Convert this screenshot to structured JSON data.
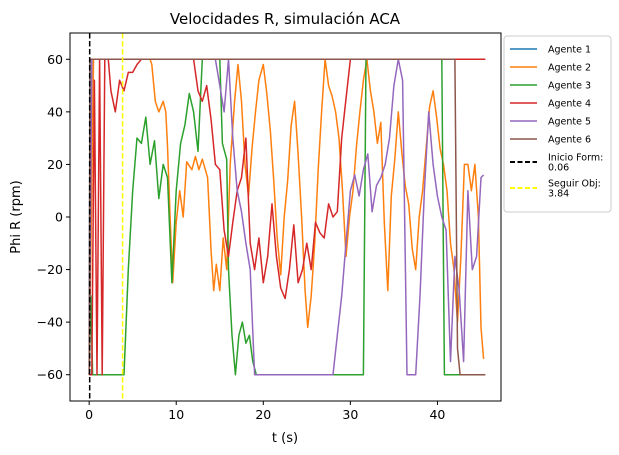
{
  "chart_data": {
    "type": "line",
    "title": "Velocidades R, simulación ACA",
    "xlabel": "t (s)",
    "ylabel": "Phi R (rpm)",
    "xlim": [
      -2.2,
      47.3
    ],
    "ylim": [
      -70,
      70
    ],
    "xticks": [
      0,
      10,
      20,
      30,
      40
    ],
    "yticks": [
      -60,
      -40,
      -20,
      0,
      20,
      40,
      60
    ],
    "grid": false,
    "legend_position": "outside-right",
    "series": [
      {
        "name": "Agente 1",
        "color": "#1f77b4",
        "points": [
          [
            0,
            -60
          ],
          [
            0.1,
            60
          ],
          [
            45.5,
            60
          ]
        ]
      },
      {
        "name": "Agente 2",
        "color": "#ff7f0e",
        "points": [
          [
            0,
            -60
          ],
          [
            0.5,
            60
          ],
          [
            7,
            60
          ],
          [
            7.2,
            58
          ],
          [
            7.6,
            44
          ],
          [
            8,
            40
          ],
          [
            8.5,
            44
          ],
          [
            8.8,
            40
          ],
          [
            9,
            27
          ],
          [
            9.3,
            0
          ],
          [
            9.6,
            -25
          ],
          [
            10,
            -2
          ],
          [
            10.4,
            10
          ],
          [
            10.8,
            0
          ],
          [
            11.2,
            21
          ],
          [
            11.8,
            18
          ],
          [
            12.2,
            23
          ],
          [
            12.6,
            18
          ],
          [
            13,
            22
          ],
          [
            13.6,
            15
          ],
          [
            14,
            -13
          ],
          [
            14.3,
            -28
          ],
          [
            14.6,
            -18
          ],
          [
            15,
            -28
          ],
          [
            15.4,
            -8
          ],
          [
            15.8,
            -20
          ],
          [
            16.2,
            20
          ],
          [
            16.7,
            44
          ],
          [
            17.1,
            58
          ],
          [
            17.5,
            44
          ],
          [
            17.9,
            20
          ],
          [
            18.3,
            8
          ],
          [
            18.7,
            26
          ],
          [
            19.1,
            40
          ],
          [
            19.5,
            52
          ],
          [
            20,
            58
          ],
          [
            20.4,
            47
          ],
          [
            20.8,
            33
          ],
          [
            21.2,
            14
          ],
          [
            21.6,
            -8
          ],
          [
            22,
            -22
          ],
          [
            22.4,
            0
          ],
          [
            22.8,
            14
          ],
          [
            23.2,
            35
          ],
          [
            23.6,
            44
          ],
          [
            24,
            24
          ],
          [
            24.4,
            0
          ],
          [
            24.8,
            -28
          ],
          [
            25.1,
            -42
          ],
          [
            25.5,
            -30
          ],
          [
            25.9,
            -10
          ],
          [
            26.3,
            18
          ],
          [
            26.7,
            40
          ],
          [
            27.1,
            60
          ],
          [
            27.5,
            50
          ],
          [
            27.9,
            46
          ],
          [
            28.3,
            40
          ],
          [
            28.7,
            30
          ],
          [
            29.1,
            10
          ],
          [
            29.5,
            -15
          ],
          [
            29.9,
            0
          ],
          [
            30.3,
            10
          ],
          [
            30.7,
            27
          ],
          [
            31.1,
            40
          ],
          [
            31.5,
            52
          ],
          [
            31.9,
            60
          ],
          [
            32.3,
            48
          ],
          [
            32.7,
            40
          ],
          [
            33.1,
            28
          ],
          [
            33.5,
            36
          ],
          [
            33.9,
            -2
          ],
          [
            34.3,
            -28
          ],
          [
            34.7,
            8
          ],
          [
            35.1,
            22
          ],
          [
            35.5,
            40
          ],
          [
            35.9,
            25
          ],
          [
            36.3,
            12
          ],
          [
            36.7,
            5
          ],
          [
            37.1,
            -12
          ],
          [
            37.5,
            -20
          ],
          [
            37.9,
            0
          ],
          [
            38.3,
            10
          ],
          [
            38.7,
            26
          ],
          [
            39.1,
            42
          ],
          [
            39.5,
            48
          ],
          [
            39.9,
            38
          ],
          [
            40.3,
            26
          ],
          [
            40.7,
            20
          ],
          [
            41.1,
            10
          ],
          [
            41.5,
            -10
          ],
          [
            41.9,
            -20
          ],
          [
            42.3,
            -40
          ],
          [
            42.7,
            -15
          ],
          [
            43.1,
            20
          ],
          [
            43.5,
            20
          ],
          [
            43.9,
            10
          ],
          [
            44.3,
            20
          ],
          [
            44.7,
            0
          ],
          [
            45,
            -42
          ],
          [
            45.3,
            -54
          ]
        ]
      },
      {
        "name": "Agente 3",
        "color": "#2ca02c",
        "points": [
          [
            0,
            -60
          ],
          [
            0.2,
            -30
          ],
          [
            0.4,
            -60
          ],
          [
            4,
            -60
          ],
          [
            4.5,
            -20
          ],
          [
            5,
            10
          ],
          [
            5.5,
            30
          ],
          [
            6,
            28
          ],
          [
            6.5,
            38
          ],
          [
            7,
            20
          ],
          [
            7.5,
            29
          ],
          [
            8,
            7
          ],
          [
            8.5,
            20
          ],
          [
            9,
            15
          ],
          [
            9.5,
            -25
          ],
          [
            10,
            10
          ],
          [
            10.5,
            28
          ],
          [
            11,
            35
          ],
          [
            11.5,
            47
          ],
          [
            12,
            40
          ],
          [
            12.5,
            25
          ],
          [
            13,
            60
          ],
          [
            15,
            60
          ],
          [
            15.3,
            28
          ],
          [
            15.8,
            22
          ],
          [
            16,
            -20
          ],
          [
            16.4,
            -45
          ],
          [
            16.8,
            -60
          ],
          [
            17.2,
            -45
          ],
          [
            17.6,
            -40
          ],
          [
            18,
            -48
          ],
          [
            18.4,
            -45
          ],
          [
            18.8,
            -55
          ],
          [
            19.2,
            -60
          ],
          [
            31.5,
            -60
          ],
          [
            31.8,
            60
          ],
          [
            40.5,
            60
          ],
          [
            40.8,
            -60
          ],
          [
            45.5,
            -60
          ]
        ]
      },
      {
        "name": "Agente 4",
        "color": "#d62728",
        "points": [
          [
            0,
            -60
          ],
          [
            0.3,
            -60
          ],
          [
            0.6,
            52
          ],
          [
            0.9,
            -60
          ],
          [
            1.2,
            60
          ],
          [
            1.5,
            -60
          ],
          [
            1.8,
            60
          ],
          [
            2.2,
            60
          ],
          [
            2.5,
            48
          ],
          [
            3,
            40
          ],
          [
            3.5,
            52
          ],
          [
            4,
            48
          ],
          [
            4.5,
            55
          ],
          [
            5,
            55
          ],
          [
            5.5,
            58
          ],
          [
            6,
            60
          ],
          [
            12,
            60
          ],
          [
            12.5,
            48
          ],
          [
            13,
            44
          ],
          [
            13.5,
            50
          ],
          [
            14,
            37
          ],
          [
            14.5,
            20
          ],
          [
            15,
            18
          ],
          [
            15.5,
            -5
          ],
          [
            16,
            -15
          ],
          [
            16.5,
            -2
          ],
          [
            17,
            10
          ],
          [
            17.5,
            15
          ],
          [
            18,
            30
          ],
          [
            18.5,
            -10
          ],
          [
            19,
            -20
          ],
          [
            19.5,
            -8
          ],
          [
            20,
            -25
          ],
          [
            20.5,
            -15
          ],
          [
            21,
            5
          ],
          [
            21.5,
            -15
          ],
          [
            22,
            -27
          ],
          [
            22.5,
            -31
          ],
          [
            23,
            -20
          ],
          [
            23.5,
            -3
          ],
          [
            24,
            -25
          ],
          [
            24.5,
            -20
          ],
          [
            25,
            -10
          ],
          [
            25.5,
            -20
          ],
          [
            26,
            -2
          ],
          [
            26.5,
            -6
          ],
          [
            27,
            -8
          ],
          [
            27.5,
            5
          ],
          [
            28,
            0
          ],
          [
            28.5,
            2
          ],
          [
            29,
            30
          ],
          [
            29.5,
            45
          ],
          [
            30,
            60
          ],
          [
            45.5,
            60
          ]
        ]
      },
      {
        "name": "Agente 5",
        "color": "#9467bd",
        "points": [
          [
            0,
            -60
          ],
          [
            0.3,
            60
          ],
          [
            14.5,
            60
          ],
          [
            15,
            50
          ],
          [
            15.5,
            40
          ],
          [
            16,
            60
          ],
          [
            16.5,
            30
          ],
          [
            17,
            10
          ],
          [
            17.5,
            2
          ],
          [
            18,
            -10
          ],
          [
            18.5,
            -20
          ],
          [
            19,
            -60
          ],
          [
            28,
            -60
          ],
          [
            28.5,
            -45
          ],
          [
            29,
            -30
          ],
          [
            29.5,
            -10
          ],
          [
            30,
            10
          ],
          [
            30.5,
            16
          ],
          [
            31,
            8
          ],
          [
            31.5,
            18
          ],
          [
            32,
            24
          ],
          [
            32.5,
            2
          ],
          [
            33,
            12
          ],
          [
            33.5,
            15
          ],
          [
            34,
            20
          ],
          [
            34.5,
            30
          ],
          [
            35,
            50
          ],
          [
            35.5,
            60
          ],
          [
            36,
            52
          ],
          [
            36.5,
            -60
          ],
          [
            37.5,
            -60
          ],
          [
            38,
            -30
          ],
          [
            38.5,
            10
          ],
          [
            39,
            40
          ],
          [
            39.5,
            20
          ],
          [
            40,
            8
          ],
          [
            40.5,
            0
          ],
          [
            41,
            -5
          ],
          [
            41.5,
            -55
          ],
          [
            42,
            -15
          ],
          [
            42.5,
            -28
          ],
          [
            43,
            -55
          ],
          [
            43.5,
            10
          ],
          [
            44,
            -20
          ],
          [
            44.5,
            -15
          ],
          [
            45,
            15
          ],
          [
            45.3,
            16
          ]
        ]
      },
      {
        "name": "Agente 6",
        "color": "#8c564b",
        "points": [
          [
            0,
            -60
          ],
          [
            0.1,
            60
          ],
          [
            42,
            60
          ],
          [
            42.3,
            -50
          ],
          [
            42.6,
            -60
          ],
          [
            45.5,
            -60
          ]
        ]
      }
    ],
    "vlines": [
      {
        "name": "Inicio Form:\n0.06",
        "x": 0.06,
        "color": "#000000",
        "style": "dashed"
      },
      {
        "name": "Seguir Obj:\n3.84",
        "x": 3.84,
        "color": "#ffff00",
        "style": "dashed"
      }
    ]
  }
}
